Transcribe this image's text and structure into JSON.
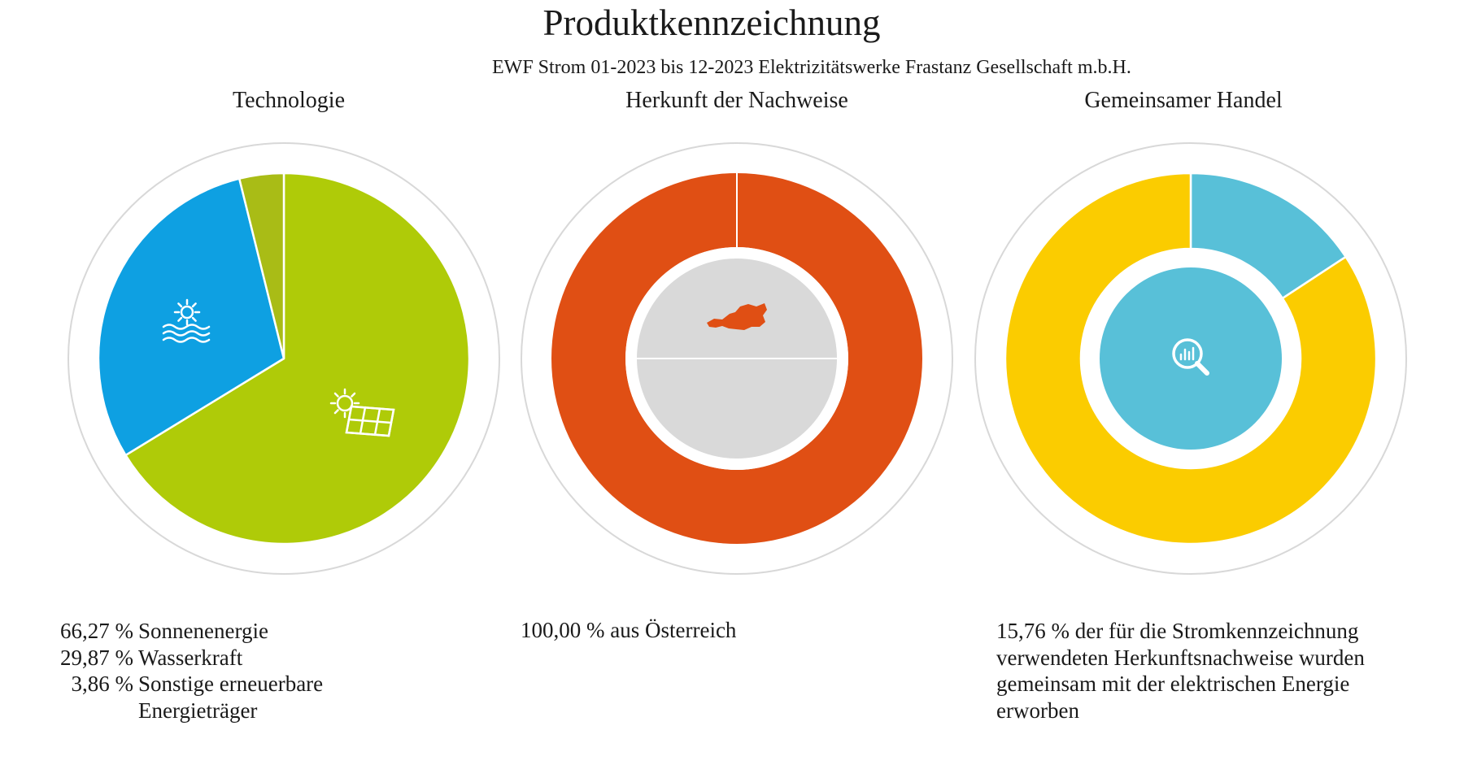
{
  "page": {
    "title": "Produktkennzeichnung",
    "subtitle": "EWF Strom 01-2023 bis 12-2023 Elektrizitätswerke Frastanz Gesellschaft m.b.H."
  },
  "icons": {
    "technology_hydro": "sun-over-water-icon",
    "technology_solar": "solar-panel-icon",
    "origin": "austria-map-icon",
    "trade": "magnifier-chart-icon"
  },
  "chart_data": [
    {
      "type": "pie",
      "title": "Technologie",
      "series": [
        {
          "name": "Sonnenenergie",
          "value": 66.27,
          "value_label": "66,27 %",
          "color": "#afcb08"
        },
        {
          "name": "Wasserkraft",
          "value": 29.87,
          "value_label": "29,87 %",
          "color": "#0ea0e2"
        },
        {
          "name": "Sonstige erneuerbare Energieträger",
          "value": 3.86,
          "value_label": "3,86 %",
          "color": "#a9bc16"
        }
      ]
    },
    {
      "type": "pie",
      "title": "Herkunft der Nachweise",
      "series": [
        {
          "name": "aus Österreich",
          "value": 100.0,
          "value_label": "100,00 %",
          "color": "#e04f14"
        }
      ],
      "legend_text": "100,00 % aus Österreich"
    },
    {
      "type": "pie",
      "title": "Gemeinsamer Handel",
      "series": [
        {
          "name": "gemeinsam erworben",
          "value": 15.76,
          "value_label": "15,76 %",
          "color": "#58c0d8"
        },
        {
          "name": "",
          "value": 84.24,
          "color": "#fbcc00"
        }
      ],
      "legend_text": "15,76 % der für die Stromkennzeichnung verwendeten Herkunftsnachweise wurden gemeinsam mit der elektrischen Energie erworben"
    }
  ]
}
